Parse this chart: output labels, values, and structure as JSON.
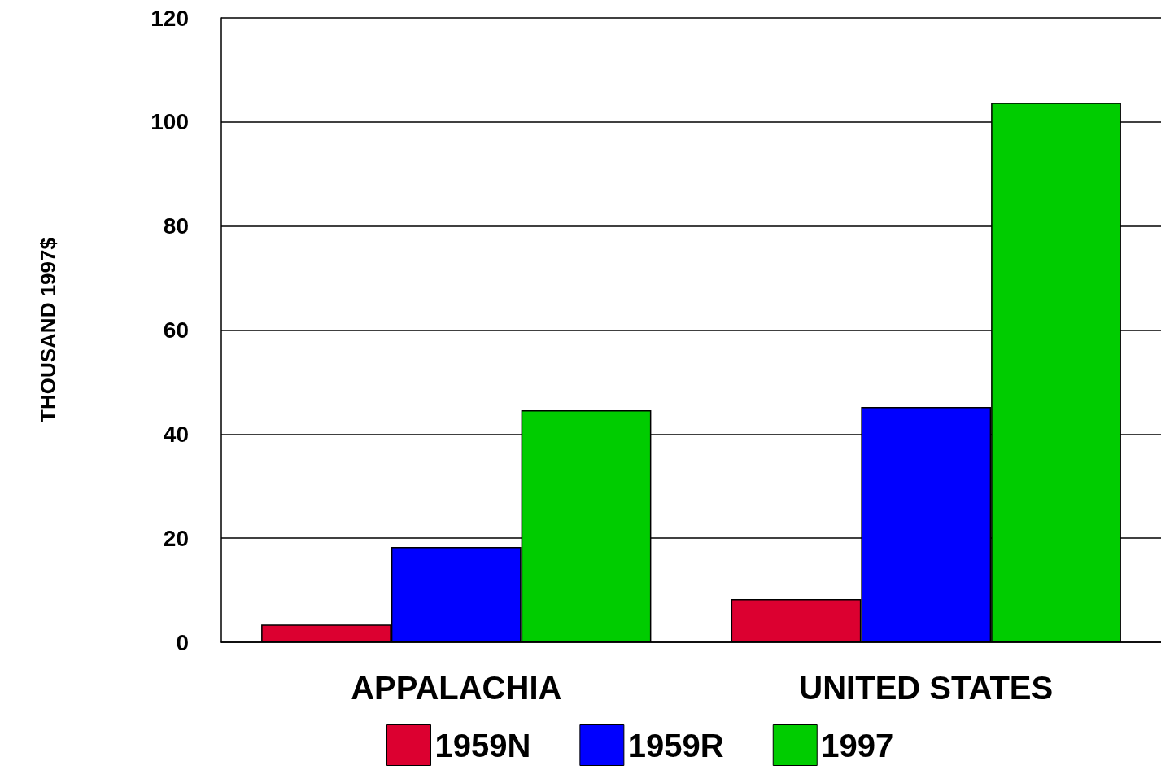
{
  "chart_data": {
    "type": "bar",
    "ylabel": "THOUSAND 1997$",
    "categories": [
      "APPALACHIA",
      "UNITED STATES"
    ],
    "series": [
      {
        "name": "1959N",
        "color": "#dc0030",
        "values": [
          3.4,
          8.3
        ]
      },
      {
        "name": "1959R",
        "color": "#0000ff",
        "values": [
          18.3,
          45.2
        ]
      },
      {
        "name": "1997",
        "color": "#00cc00",
        "values": [
          44.6,
          103.7
        ]
      }
    ],
    "ylim": [
      0,
      120
    ],
    "yticks": [
      0,
      20,
      40,
      60,
      80,
      100,
      120
    ],
    "grid": "y",
    "legend": "bottom"
  }
}
